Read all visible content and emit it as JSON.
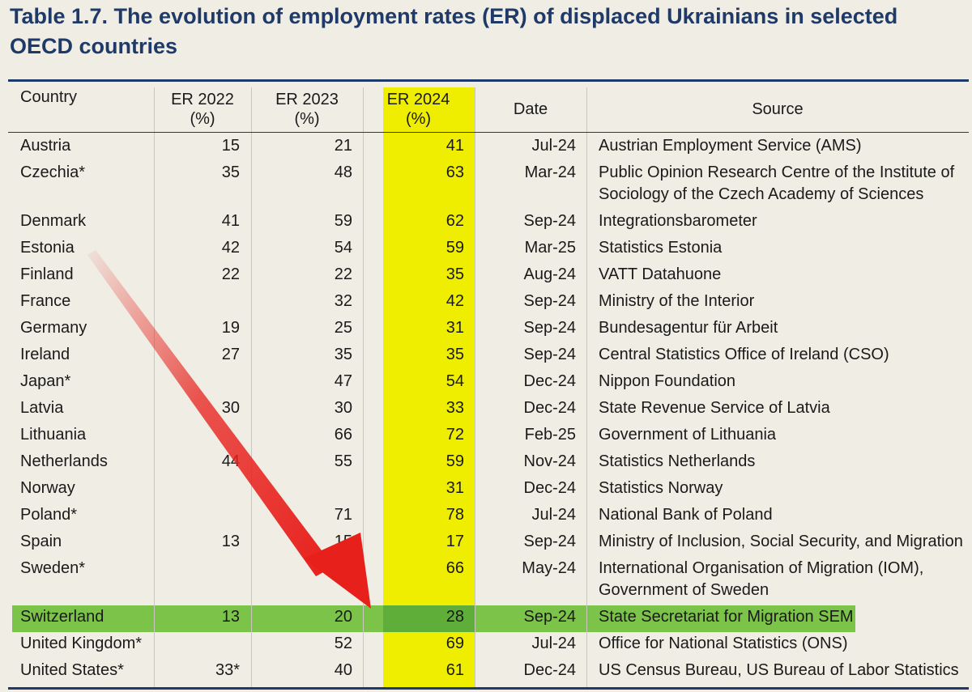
{
  "title": "Table 1.7. The evolution of employment rates (ER) of displaced Ukrainians in selected OECD countries",
  "headers": {
    "country": "Country",
    "er2022": "ER 2022",
    "er2022_unit": "(%)",
    "er2023": "ER 2023",
    "er2023_unit": "(%)",
    "er2024": "ER 2024",
    "er2024_unit": "(%)",
    "date": "Date",
    "source": "Source"
  },
  "colors": {
    "title": "#1f3a68",
    "highlight_column": "#f0ee00",
    "highlight_row": "#7cc34a",
    "arrow": "#e8201c"
  },
  "highlighted_row": "Switzerland",
  "rows": [
    {
      "country": "Austria",
      "er2022": "15",
      "er2023": "21",
      "er2024": "41",
      "date": "Jul-24",
      "source": "Austrian Employment Service (AMS)"
    },
    {
      "country": "Czechia*",
      "er2022": "35",
      "er2023": "48",
      "er2024": "63",
      "date": "Mar-24",
      "source": "Public Opinion Research Centre of the Institute of Sociology of the Czech Academy of Sciences"
    },
    {
      "country": "Denmark",
      "er2022": "41",
      "er2023": "59",
      "er2024": "62",
      "date": "Sep-24",
      "source": "Integrationsbarometer"
    },
    {
      "country": "Estonia",
      "er2022": "42",
      "er2023": "54",
      "er2024": "59",
      "date": "Mar-25",
      "source": "Statistics Estonia"
    },
    {
      "country": "Finland",
      "er2022": "22",
      "er2023": "22",
      "er2024": "35",
      "date": "Aug-24",
      "source": "VATT Datahuone"
    },
    {
      "country": "France",
      "er2022": "",
      "er2023": "32",
      "er2024": "42",
      "date": "Sep-24",
      "source": "Ministry of the Interior"
    },
    {
      "country": "Germany",
      "er2022": "19",
      "er2023": "25",
      "er2024": "31",
      "date": "Sep-24",
      "source": "Bundesagentur für Arbeit"
    },
    {
      "country": "Ireland",
      "er2022": "27",
      "er2023": "35",
      "er2024": "35",
      "date": "Sep-24",
      "source": "Central Statistics Office of Ireland (CSO)"
    },
    {
      "country": "Japan*",
      "er2022": "",
      "er2023": "47",
      "er2024": "54",
      "date": "Dec-24",
      "source": "Nippon Foundation"
    },
    {
      "country": "Latvia",
      "er2022": "30",
      "er2023": "30",
      "er2024": "33",
      "date": "Dec-24",
      "source": "State Revenue Service of Latvia"
    },
    {
      "country": "Lithuania",
      "er2022": "",
      "er2023": "66",
      "er2024": "72",
      "date": "Feb-25",
      "source": "Government of Lithuania"
    },
    {
      "country": "Netherlands",
      "er2022": "44",
      "er2023": "55",
      "er2024": "59",
      "date": "Nov-24",
      "source": "Statistics Netherlands"
    },
    {
      "country": "Norway",
      "er2022": "",
      "er2023": "",
      "er2024": "31",
      "date": "Dec-24",
      "source": "Statistics Norway"
    },
    {
      "country": "Poland*",
      "er2022": "",
      "er2023": "71",
      "er2024": "78",
      "date": "Jul-24",
      "source": "National Bank of Poland"
    },
    {
      "country": "Spain",
      "er2022": "13",
      "er2023": "15",
      "er2024": "17",
      "date": "Sep-24",
      "source": "Ministry of Inclusion, Social Security, and Migration"
    },
    {
      "country": "Sweden*",
      "er2022": "",
      "er2023": "56",
      "er2024": "66",
      "date": "May-24",
      "source": "International Organisation of Migration (IOM), Government of Sweden"
    },
    {
      "country": "Switzerland",
      "er2022": "13",
      "er2023": "20",
      "er2024": "28",
      "date": "Sep-24",
      "source": "State Secretariat for Migration SEM"
    },
    {
      "country": "United Kingdom*",
      "er2022": "",
      "er2023": "52",
      "er2024": "69",
      "date": "Jul-24",
      "source": "Office for National Statistics (ONS)"
    },
    {
      "country": "United States*",
      "er2022": "33*",
      "er2023": "40",
      "er2024": "61",
      "date": "Dec-24",
      "source": "US Census Bureau, US Bureau of Labor Statistics"
    }
  ]
}
